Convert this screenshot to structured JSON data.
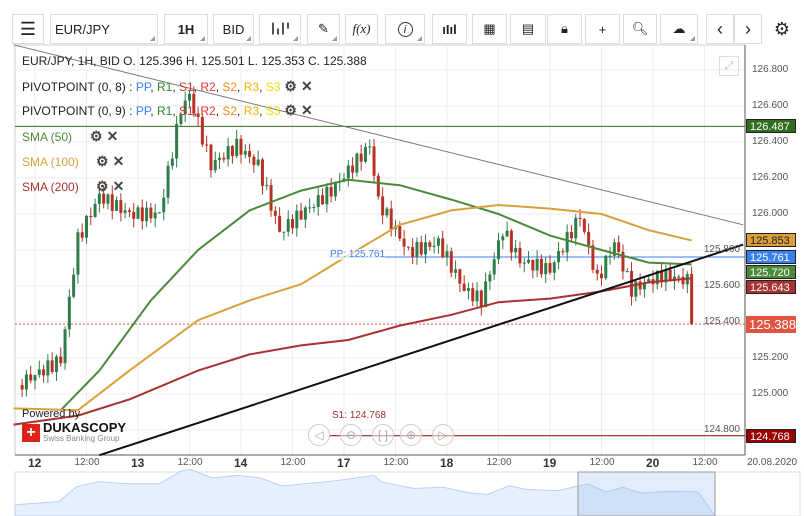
{
  "toolbar": {
    "symbol": "EUR/JPY",
    "timeframe": "1H",
    "side": "BID",
    "icons": [
      "menu-icon",
      "candles-icon",
      "pencil-icon",
      "fx-icon",
      "info-icon",
      "volume-icon",
      "calendar-icon",
      "news-icon",
      "lock-icon",
      "crosshair-icon",
      "zoom-chart-icon",
      "upload-cloud-icon",
      "arrow-left-icon",
      "arrow-right-icon",
      "gear-icon"
    ],
    "fx": "f(x)"
  },
  "ohlc": "EUR/JPY, 1H, BID   O. 125.396 H. 125.501 L. 125.353 C. 125.388",
  "indicators": [
    {
      "name": "PIVOTPOINT (0, 8)",
      "parts": [
        "PP",
        "R1",
        "S1",
        "R2",
        "S2",
        "R3",
        "S3"
      ]
    },
    {
      "name": "PIVOTPOINT (0, 9)",
      "parts": [
        "PP",
        "R1",
        "S1",
        "R2",
        "S2",
        "R3",
        "S3"
      ]
    }
  ],
  "pivot_colors": [
    "#3a7ff0",
    "#2a8a2a",
    "#c0392b",
    "#e53935",
    "#f58a1f",
    "#f5b400",
    "#e8e000"
  ],
  "smas": [
    {
      "label": "SMA (50)",
      "color": "#4a8a3a"
    },
    {
      "label": "SMA (100)",
      "color": "#d9a03a"
    },
    {
      "label": "SMA (200)",
      "color": "#a83232"
    }
  ],
  "price_axis": [
    "126.800",
    "126.600",
    "126.400",
    "126.200",
    "126.000",
    "125.800",
    "125.600",
    "125.400",
    "125.200",
    "125.000",
    "124.800"
  ],
  "price_labels": [
    {
      "value": "126.487",
      "color": "#2e6e1e"
    },
    {
      "value": "125.853",
      "color": "#d9a03a"
    },
    {
      "value": "125.761",
      "color": "#3a7ff0"
    },
    {
      "value": "125.720",
      "color": "#4a8a3a"
    },
    {
      "value": "125.643",
      "color": "#a83232"
    },
    {
      "value": "125.388",
      "color": "#e0553f"
    },
    {
      "value": "124.768",
      "color": "#990000"
    }
  ],
  "pp_label": "PP: 125.761",
  "s1_label": "S1: 124.768",
  "x_axis": [
    {
      "t": "12",
      "d": true
    },
    {
      "t": "12:00"
    },
    {
      "t": "13",
      "d": true
    },
    {
      "t": "12:00"
    },
    {
      "t": "14",
      "d": true
    },
    {
      "t": "12:00"
    },
    {
      "t": "17",
      "d": true
    },
    {
      "t": "12:00"
    },
    {
      "t": "18",
      "d": true
    },
    {
      "t": "12:00"
    },
    {
      "t": "19",
      "d": true
    },
    {
      "t": "12:00"
    },
    {
      "t": "20",
      "d": true
    },
    {
      "t": "12:00"
    }
  ],
  "date_label": "20.08.2020",
  "branding": {
    "powered": "Powered by",
    "name": "DUKASCOPY",
    "sub": "Swiss Banking Group"
  },
  "chart_data": {
    "type": "candlestick",
    "symbol": "EUR/JPY",
    "ylim": [
      124.65,
      126.95
    ],
    "price_path": [
      [
        -4,
        125.05
      ],
      [
        6,
        125.19
      ],
      [
        10,
        125.86
      ],
      [
        15,
        126.1
      ],
      [
        22,
        126.0
      ],
      [
        29,
        126.0
      ],
      [
        34,
        126.58
      ],
      [
        36,
        126.66
      ],
      [
        41,
        126.27
      ],
      [
        47,
        126.38
      ],
      [
        52,
        126.27
      ],
      [
        57,
        125.9
      ],
      [
        62,
        126.0
      ],
      [
        69,
        126.13
      ],
      [
        73,
        126.24
      ],
      [
        78,
        126.38
      ],
      [
        80,
        126.07
      ],
      [
        87,
        125.79
      ],
      [
        94,
        125.84
      ],
      [
        100,
        125.58
      ],
      [
        104,
        125.52
      ],
      [
        109,
        125.91
      ],
      [
        113,
        125.74
      ],
      [
        120,
        125.69
      ],
      [
        127,
        125.99
      ],
      [
        131,
        125.63
      ],
      [
        135,
        125.84
      ],
      [
        139,
        125.58
      ],
      [
        146,
        125.66
      ],
      [
        152,
        125.63
      ],
      [
        153,
        125.388
      ]
    ],
    "sma50": [
      [
        6,
        124.91
      ],
      [
        15,
        125.13
      ],
      [
        27,
        125.52
      ],
      [
        38,
        125.8
      ],
      [
        50,
        126.02
      ],
      [
        62,
        126.13
      ],
      [
        73,
        126.19
      ],
      [
        85,
        126.16
      ],
      [
        97,
        126.08
      ],
      [
        108,
        126.0
      ],
      [
        120,
        125.88
      ],
      [
        132,
        125.8
      ],
      [
        143,
        125.73
      ],
      [
        153,
        125.72
      ]
    ],
    "sma100": [
      [
        -5,
        124.92
      ],
      [
        10,
        124.91
      ],
      [
        22,
        125.13
      ],
      [
        38,
        125.41
      ],
      [
        50,
        125.52
      ],
      [
        62,
        125.61
      ],
      [
        73,
        125.77
      ],
      [
        85,
        125.94
      ],
      [
        97,
        126.02
      ],
      [
        108,
        126.05
      ],
      [
        120,
        126.03
      ],
      [
        132,
        126.0
      ],
      [
        143,
        125.91
      ],
      [
        153,
        125.853
      ]
    ],
    "sma200": [
      [
        -5,
        124.83
      ],
      [
        10,
        124.88
      ],
      [
        22,
        124.97
      ],
      [
        38,
        125.13
      ],
      [
        50,
        125.22
      ],
      [
        62,
        125.27
      ],
      [
        73,
        125.3
      ],
      [
        85,
        125.38
      ],
      [
        97,
        125.44
      ],
      [
        108,
        125.51
      ],
      [
        120,
        125.53
      ],
      [
        132,
        125.57
      ],
      [
        143,
        125.62
      ],
      [
        153,
        125.643
      ]
    ],
    "trend_black": [
      [
        15,
        124.66
      ],
      [
        165,
        125.83
      ]
    ],
    "trend_gray": [
      [
        -5,
        126.94
      ],
      [
        165,
        125.94
      ]
    ],
    "levels": {
      "r_green": 126.487,
      "pp": 125.761,
      "s1": 124.768,
      "last": 125.388
    }
  }
}
